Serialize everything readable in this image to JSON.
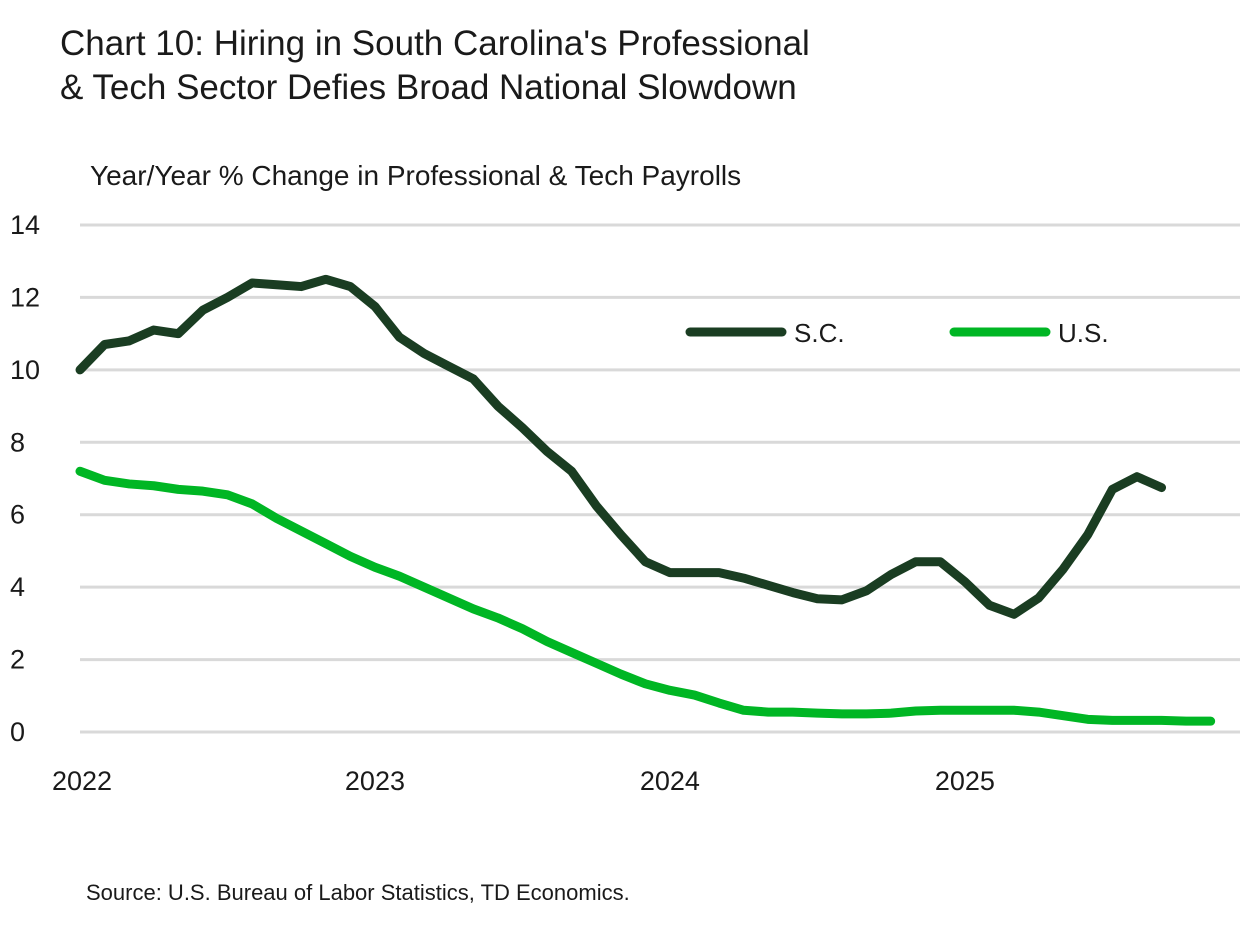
{
  "title": "Chart 10: Hiring in South Carolina's Professional\n& Tech Sector Defies Broad National Slowdown",
  "source": "Source: U.S. Bureau of Labor Statistics, TD Economics.",
  "chart_data": {
    "type": "line",
    "title": "Chart 10: Hiring in South Carolina's Professional & Tech Sector Defies Broad National Slowdown",
    "ylabel": "Year/Year % Change in Professional & Tech Payrolls",
    "xlabel": "",
    "frequency": "monthly",
    "x_start": "2022-01",
    "x_ticks": [
      "2022",
      "2023",
      "2024",
      "2025"
    ],
    "y_ticks": [
      "0",
      "2",
      "4",
      "6",
      "8",
      "10",
      "12",
      "14"
    ],
    "ylim": [
      0,
      14
    ],
    "grid": true,
    "legend_position": "top-right",
    "series": [
      {
        "name": "S.C.",
        "color": "#1a3d22",
        "values": [
          10.0,
          10.7,
          10.8,
          11.1,
          11.0,
          11.65,
          12.0,
          12.4,
          12.35,
          12.3,
          12.5,
          12.3,
          11.75,
          10.9,
          10.45,
          10.1,
          9.75,
          9.0,
          8.4,
          7.75,
          7.2,
          6.25,
          5.45,
          4.7,
          4.4,
          4.4,
          4.4,
          4.25,
          4.05,
          3.85,
          3.68,
          3.65,
          3.9,
          4.35,
          4.7,
          4.7,
          4.15,
          3.5,
          3.25,
          3.7,
          4.5,
          5.45,
          6.7,
          7.05,
          6.75
        ]
      },
      {
        "name": "U.S.",
        "color": "#00b624",
        "values": [
          7.2,
          6.95,
          6.85,
          6.8,
          6.7,
          6.65,
          6.55,
          6.3,
          5.9,
          5.55,
          5.2,
          4.85,
          4.55,
          4.3,
          4.0,
          3.7,
          3.4,
          3.15,
          2.85,
          2.5,
          2.2,
          1.9,
          1.6,
          1.33,
          1.15,
          1.02,
          0.8,
          0.6,
          0.55,
          0.55,
          0.52,
          0.5,
          0.5,
          0.52,
          0.58,
          0.6,
          0.6,
          0.6,
          0.6,
          0.55,
          0.45,
          0.35,
          0.32,
          0.32,
          0.32,
          0.3,
          0.3
        ]
      }
    ]
  }
}
